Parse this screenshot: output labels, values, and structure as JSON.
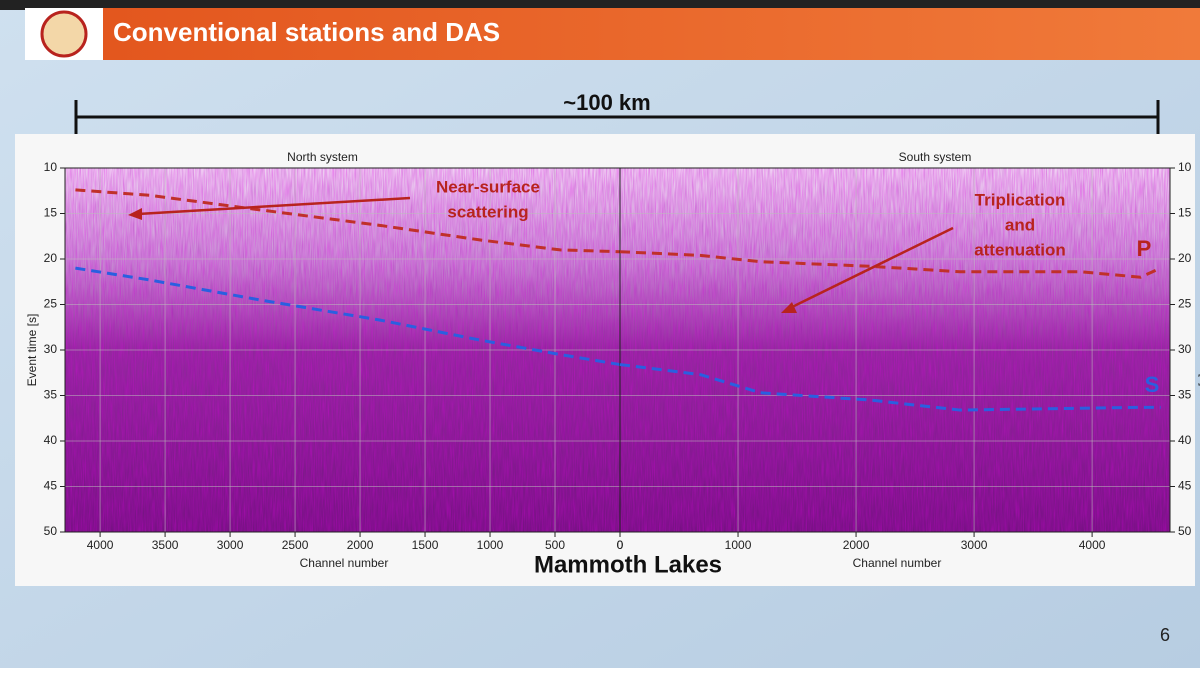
{
  "slide": {
    "title": "Conventional stations and DAS",
    "scale_label": "~100 km",
    "caption": "Mammoth Lakes",
    "page_number": "6"
  },
  "chart_data": [
    {
      "type": "line",
      "title": "North system",
      "x_label": "Channel number",
      "y_label": "Event time [s]",
      "y_axis_side": "left",
      "xlim": [
        4270,
        0
      ],
      "ylim": [
        50,
        10
      ],
      "xticks": [
        4000,
        3500,
        3000,
        2500,
        2000,
        1500,
        1000,
        500,
        0
      ],
      "yticks": [
        10,
        15,
        20,
        25,
        30,
        35,
        40,
        45,
        50
      ],
      "grid": true,
      "x": [
        4190,
        3620,
        2770,
        1850,
        1080,
        460,
        0
      ],
      "series": [
        {
          "color": "#c0302a",
          "values": [
            12.4,
            13.0,
            14.6,
            16.3,
            17.9,
            19.0,
            19.2
          ]
        },
        {
          "color": "#2a5fe0",
          "values": [
            21.0,
            22.3,
            24.5,
            26.7,
            28.9,
            30.5,
            31.6
          ]
        }
      ],
      "annotations": [
        {
          "lines": [
            "Near-surface",
            "scattering"
          ]
        }
      ]
    },
    {
      "type": "line",
      "title": "South system",
      "x_label": "Channel number",
      "y_label": "Event time [s]",
      "y_axis_side": "right",
      "xlim": [
        0,
        4660
      ],
      "ylim": [
        50,
        10
      ],
      "xticks": [
        0,
        1000,
        2000,
        3000,
        4000
      ],
      "yticks": [
        10,
        15,
        20,
        25,
        30,
        35,
        40,
        45,
        50
      ],
      "grid": true,
      "x": [
        0,
        680,
        1190,
        2120,
        2880,
        3900,
        4410,
        4580
      ],
      "series": [
        {
          "name": "P",
          "color": "#c0302a",
          "values": [
            19.2,
            19.6,
            20.3,
            20.8,
            21.4,
            21.4,
            22.0,
            21.0
          ]
        },
        {
          "name": "S",
          "color": "#2a5fe0",
          "values": [
            31.6,
            32.7,
            34.7,
            35.5,
            36.6,
            36.4,
            36.3,
            36.3
          ]
        }
      ],
      "annotations": [
        {
          "lines": [
            "Triplication",
            "and",
            "attenuation"
          ]
        }
      ]
    }
  ]
}
